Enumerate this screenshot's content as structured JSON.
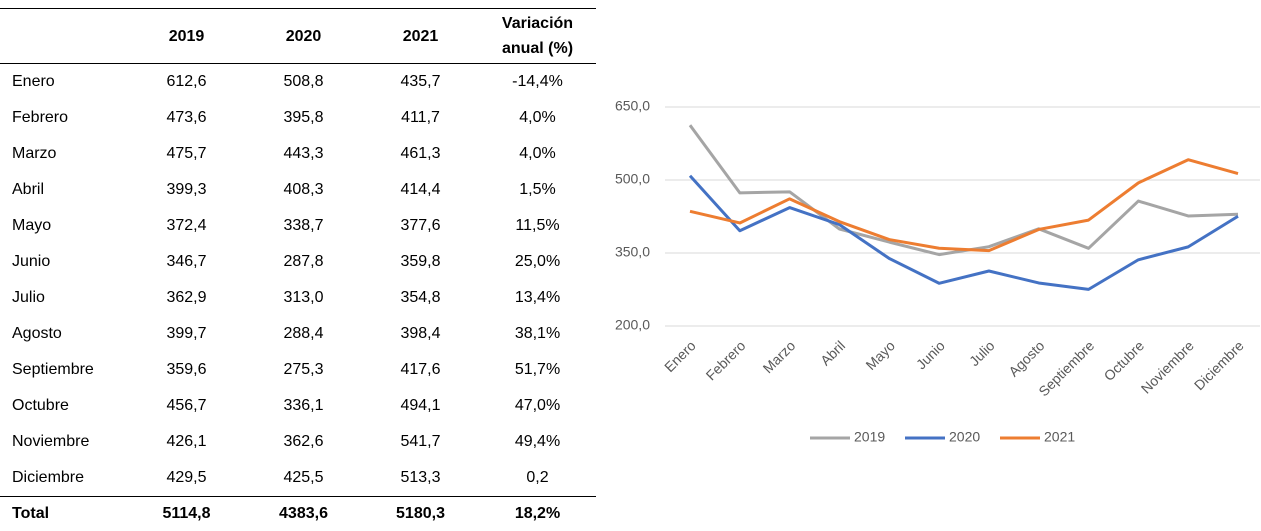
{
  "table": {
    "columns": [
      "2019",
      "2020",
      "2021",
      "Variación anual (%)"
    ],
    "rows": [
      [
        "Enero",
        "612,6",
        "508,8",
        "435,7",
        "-14,4%"
      ],
      [
        "Febrero",
        "473,6",
        "395,8",
        "411,7",
        "4,0%"
      ],
      [
        "Marzo",
        "475,7",
        "443,3",
        "461,3",
        "4,0%"
      ],
      [
        "Abril",
        "399,3",
        "408,3",
        "414,4",
        "1,5%"
      ],
      [
        "Mayo",
        "372,4",
        "338,7",
        "377,6",
        "11,5%"
      ],
      [
        "Junio",
        "346,7",
        "287,8",
        "359,8",
        "25,0%"
      ],
      [
        "Julio",
        "362,9",
        "313,0",
        "354,8",
        "13,4%"
      ],
      [
        "Agosto",
        "399,7",
        "288,4",
        "398,4",
        "38,1%"
      ],
      [
        "Septiembre",
        "359,6",
        "275,3",
        "417,6",
        "51,7%"
      ],
      [
        "Octubre",
        "456,7",
        "336,1",
        "494,1",
        "47,0%"
      ],
      [
        "Noviembre",
        "426,1",
        "362,6",
        "541,7",
        "49,4%"
      ],
      [
        "Diciembre",
        "429,5",
        "425,5",
        "513,3",
        "0,2"
      ]
    ],
    "total": [
      "Total",
      "5114,8",
      "4383,6",
      "5180,3",
      "18,2%"
    ]
  },
  "chart_data": {
    "type": "line",
    "categories": [
      "Enero",
      "Febrero",
      "Marzo",
      "Abril",
      "Mayo",
      "Junio",
      "Julio",
      "Agosto",
      "Septiembre",
      "Octubre",
      "Noviembre",
      "Diciembre"
    ],
    "series": [
      {
        "name": "2019",
        "color": "#a5a5a5",
        "values": [
          612.6,
          473.6,
          475.7,
          399.3,
          372.4,
          346.7,
          362.9,
          399.7,
          359.6,
          456.7,
          426.1,
          429.5
        ]
      },
      {
        "name": "2020",
        "color": "#4472c4",
        "values": [
          508.8,
          395.8,
          443.3,
          408.3,
          338.7,
          287.8,
          313.0,
          288.4,
          275.3,
          336.1,
          362.6,
          425.5
        ]
      },
      {
        "name": "2021",
        "color": "#ed7d31",
        "values": [
          435.7,
          411.7,
          461.3,
          414.4,
          377.6,
          359.8,
          354.8,
          398.4,
          417.6,
          494.1,
          541.7,
          513.3
        ]
      }
    ],
    "ylim": [
      200,
      650
    ],
    "yticks": [
      {
        "value": 200,
        "label": "200,0"
      },
      {
        "value": 350,
        "label": "350,0"
      },
      {
        "value": 500,
        "label": "500,0"
      },
      {
        "value": 650,
        "label": "650,0"
      }
    ],
    "grid": true,
    "legend": "bottom"
  }
}
